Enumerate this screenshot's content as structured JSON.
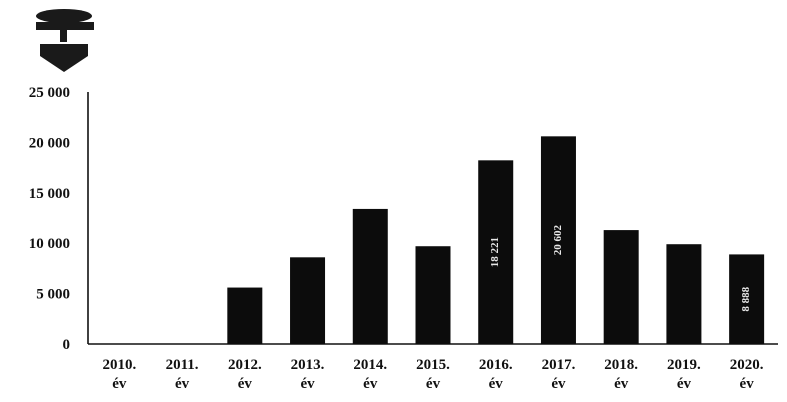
{
  "chart_data": {
    "type": "bar",
    "categories": [
      [
        "2010.",
        "év"
      ],
      [
        "2011.",
        "év"
      ],
      [
        "2012.",
        "év"
      ],
      [
        "2013.",
        "év"
      ],
      [
        "2014.",
        "év"
      ],
      [
        "2015.",
        "év"
      ],
      [
        "2016.",
        "év"
      ],
      [
        "2017.",
        "év"
      ],
      [
        "2018.",
        "év"
      ],
      [
        "2019.",
        "év"
      ],
      [
        "2020.",
        "év"
      ]
    ],
    "values": [
      0,
      0,
      5600,
      8600,
      13400,
      9700,
      18221,
      20602,
      11300,
      9900,
      8888
    ],
    "value_labels": [
      "",
      "",
      "",
      "",
      "",
      "",
      "18 221",
      "20 602",
      "",
      "",
      "8 888"
    ],
    "yticks": [
      "0",
      "5 000",
      "10 000",
      "15 000",
      "20 000",
      "25 000"
    ],
    "ylim": [
      0,
      25000
    ],
    "title": "",
    "xlabel": "",
    "ylabel": "",
    "grid": false,
    "bar_color": "#0c0c0c"
  },
  "logo": {
    "icon": "tree-emblem-icon"
  }
}
